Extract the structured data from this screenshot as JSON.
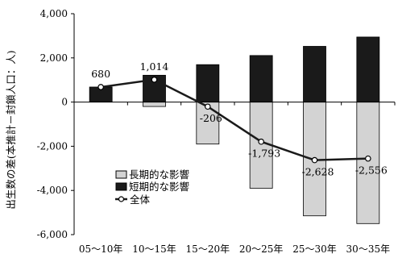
{
  "chart_data": {
    "type": "bar",
    "ylabel": "出生数の差(本推計－封鎖人口：人)",
    "ylim": [
      -6000,
      4000
    ],
    "yticks": [
      4000,
      2000,
      0,
      -2000,
      -4000,
      -6000
    ],
    "ytick_labels": [
      "4,000",
      "2,000",
      "0",
      "-2,000",
      "-4,000",
      "-6,000"
    ],
    "categories": [
      "05～10年",
      "10～15年",
      "15～20年",
      "20～25年",
      "25～30年",
      "30～35年"
    ],
    "series": [
      {
        "name": "長期的な影響",
        "kind": "bar",
        "color": "#d3d3d3",
        "values": [
          0,
          -200,
          -1900,
          -3900,
          -5150,
          -5500
        ]
      },
      {
        "name": "短期的な影響",
        "kind": "bar",
        "color": "#1a1a1a",
        "values": [
          680,
          1214,
          1694,
          2107,
          2522,
          2944
        ]
      },
      {
        "name": "全体",
        "kind": "line",
        "color": "#1a1a1a",
        "values": [
          680,
          1014,
          -206,
          -1793,
          -2628,
          -2556
        ]
      }
    ],
    "data_labels": [
      "680",
      "1,014",
      "-206",
      "-1,793",
      "-2,628",
      "-2,556"
    ],
    "legend_position": "lower-left",
    "grid": false
  }
}
